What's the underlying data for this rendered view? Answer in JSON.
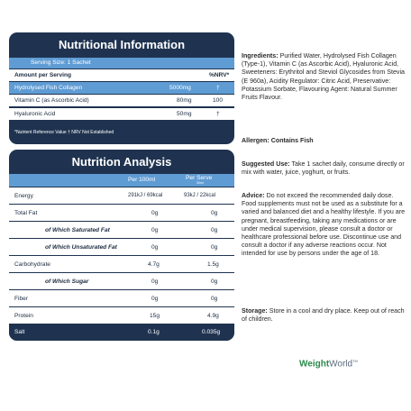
{
  "nutritional_info": {
    "title": "Nutritional Information",
    "serving_size": "Serving Size: 1 Sachet",
    "header": {
      "amount": "Amount per Serving",
      "nrv": "%NRV*"
    },
    "rows": [
      {
        "name": "Hydrolysed Fish Collagen",
        "amount": "5000mg",
        "nrv": "†"
      },
      {
        "name": "Vitamin C (as Ascorbic Acid)",
        "amount": "80mg",
        "nrv": "100"
      },
      {
        "name": "Hyaluronic Acid",
        "amount": "50mg",
        "nrv": "†"
      }
    ],
    "footnote": "*Nutrient Reference Value † NRV Not Established"
  },
  "nutrition_analysis": {
    "title": "Nutrition Analysis",
    "col_per100": "Per 100ml",
    "col_perserve": "Per Serve",
    "col_perserve_sub": "30ml",
    "rows": [
      {
        "name": "Energy",
        "per100": "291kJ / 69kcal",
        "perserve": "93kJ / 22kcal"
      },
      {
        "name": "Total Fat",
        "per100": "0g",
        "perserve": "0g"
      },
      {
        "name": "of Which Saturated Fat",
        "per100": "0g",
        "perserve": "0g"
      },
      {
        "name": "of Which Unsaturated Fat",
        "per100": "0g",
        "perserve": "0g"
      },
      {
        "name": "Carbohydrate",
        "per100": "4.7g",
        "perserve": "1.5g"
      },
      {
        "name": "of Which Sugar",
        "per100": "0g",
        "perserve": "0g"
      },
      {
        "name": "Fiber",
        "per100": "0g",
        "perserve": "0g"
      },
      {
        "name": "Protein",
        "per100": "15g",
        "perserve": "4.9g"
      },
      {
        "name": "Salt",
        "per100": "0.1g",
        "perserve": "0.035g"
      }
    ]
  },
  "ingredients": {
    "label": "Ingredients:",
    "text": "Purified Water, Hydrolysed Fish Collagen (Type-1), Vitamin C (as Ascorbic Acid), Hyaluronic Acid, Sweeteners: Erythritol and Steviol Glycosides from Stevia (E 960a), Acidity Regulator: Citric Acid, Preservative: Potassium Sorbate, Flavouring Agent: Natural Summer Fruits Flavour."
  },
  "allergen": {
    "label": "Allergen:",
    "text": "Contains Fish"
  },
  "suggested_use": {
    "label": "Suggested Use:",
    "text": "Take 1 sachet daily, consume directly or mix with water, juice, yoghurt, or fruits."
  },
  "advice": {
    "label": "Advice:",
    "text": "Do not exceed the recommended daily dose. Food supplements must not be used as a substitute for a varied and balanced diet and a healthy lifestyle. If you are pregnant, breastfeeding, taking any medications or are under medical supervision, please consult a doctor or healthcare professional before use. Discontinue use and consult a doctor if any adverse reactions occur. Not intended for use by persons under the age of 18."
  },
  "storage": {
    "label": "Storage:",
    "text": "Store in a cool and dry place. Keep out of reach of children."
  },
  "brand": {
    "weight": "Weight",
    "world": "World",
    "tm": "TM"
  },
  "colors": {
    "panel": "#1f3350",
    "accent": "#5f9cd4",
    "brand_green": "#2a8a4a"
  }
}
